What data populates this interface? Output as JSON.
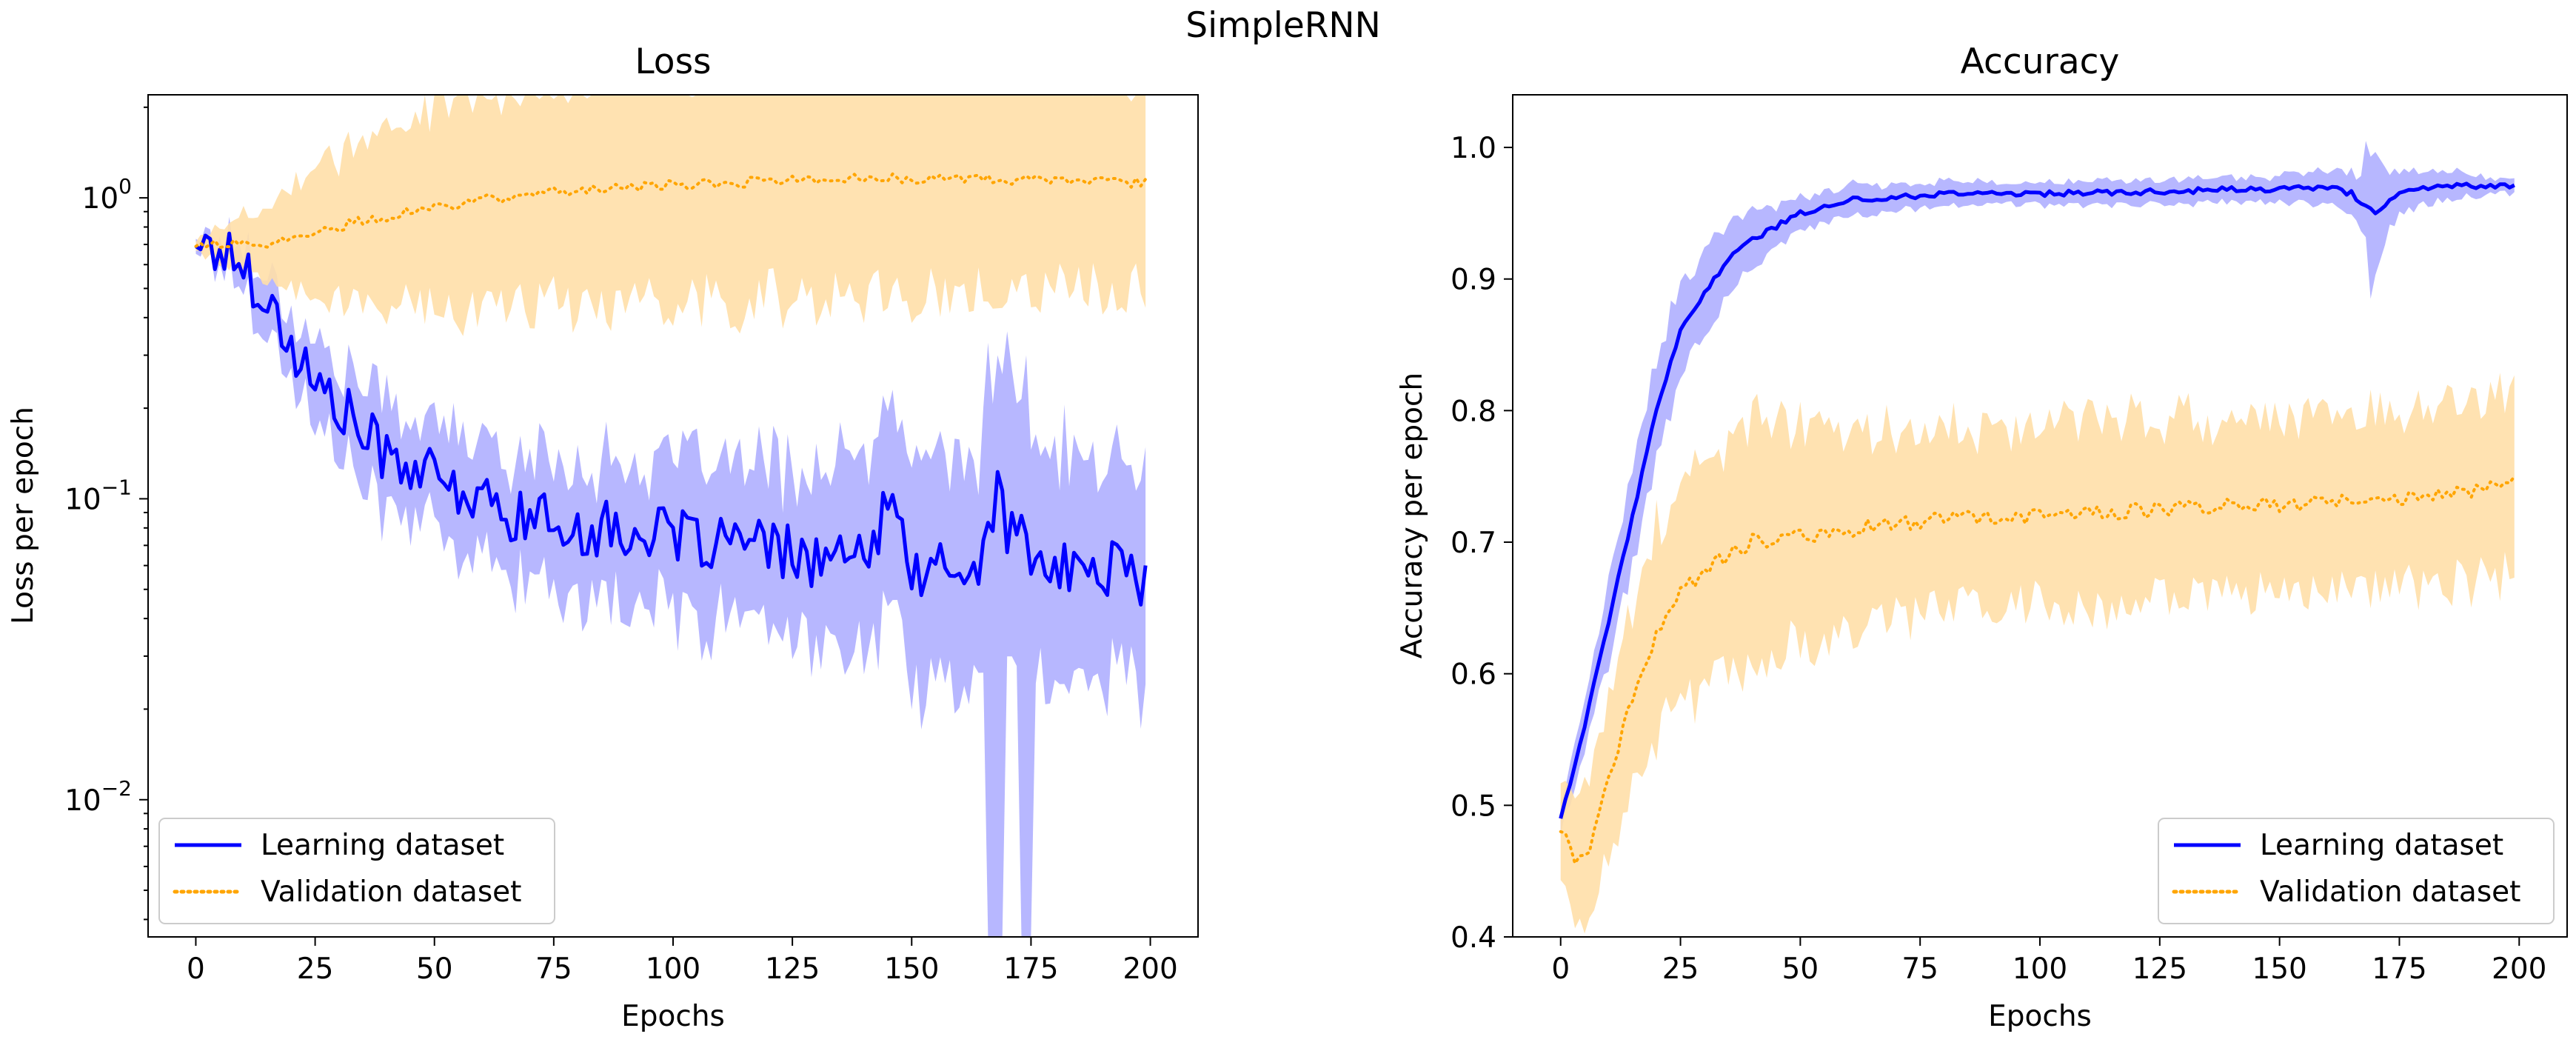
{
  "chart_data": {
    "suptitle": "SimpleRNN",
    "epochs": 200,
    "colors": {
      "learning": "#0000ff",
      "learning_band": "#aaaaff",
      "validation": "#ffa500",
      "validation_band": "#ffdfa8"
    },
    "charts": [
      {
        "id": "loss",
        "type": "line",
        "title": "Loss",
        "xlabel": "Epochs",
        "ylabel": "Loss per epoch",
        "yscale": "log",
        "xlim": [
          -10,
          210
        ],
        "ylim": [
          0.0035,
          2.2
        ],
        "xticks": [
          0,
          25,
          50,
          75,
          100,
          125,
          150,
          175,
          200
        ],
        "yticks": [
          {
            "value": 1,
            "base": "10",
            "exp": "0"
          },
          {
            "value": 0.1,
            "base": "10",
            "exp": "−1"
          },
          {
            "value": 0.01,
            "base": "10",
            "exp": "−2"
          }
        ],
        "legend": {
          "position": "lower-left",
          "entries": [
            {
              "label": "Learning dataset",
              "style": "solid",
              "series": "learning"
            },
            {
              "label": "Validation dataset",
              "style": "dotted",
              "series": "validation"
            }
          ]
        },
        "series": [
          {
            "name": "Learning dataset",
            "key": "learning",
            "style": "solid",
            "keypoints": [
              [
                0,
                0.69
              ],
              [
                5,
                0.67
              ],
              [
                10,
                0.6
              ],
              [
                15,
                0.45
              ],
              [
                20,
                0.32
              ],
              [
                25,
                0.24
              ],
              [
                30,
                0.2
              ],
              [
                35,
                0.165
              ],
              [
                40,
                0.14
              ],
              [
                45,
                0.13
              ],
              [
                50,
                0.115
              ],
              [
                55,
                0.105
              ],
              [
                60,
                0.097
              ],
              [
                65,
                0.09
              ],
              [
                70,
                0.087
              ],
              [
                75,
                0.082
              ],
              [
                80,
                0.08
              ],
              [
                90,
                0.078
              ],
              [
                100,
                0.074
              ],
              [
                110,
                0.072
              ],
              [
                120,
                0.068
              ],
              [
                130,
                0.063
              ],
              [
                140,
                0.062
              ],
              [
                145,
                0.09
              ],
              [
                150,
                0.06
              ],
              [
                155,
                0.058
              ],
              [
                160,
                0.057
              ],
              [
                165,
                0.06
              ],
              [
                168,
                0.115
              ],
              [
                170,
                0.08
              ],
              [
                175,
                0.066
              ],
              [
                180,
                0.057
              ],
              [
                190,
                0.058
              ],
              [
                195,
                0.062
              ],
              [
                199,
                0.049
              ]
            ],
            "noise": 0.22,
            "band_keypoints": [
              [
                0,
                0.025
              ],
              [
                20,
                0.14
              ],
              [
                40,
                0.2
              ],
              [
                80,
                0.25
              ],
              [
                100,
                0.28
              ],
              [
                130,
                0.34
              ],
              [
                150,
                0.42
              ],
              [
                180,
                0.45
              ],
              [
                199,
                0.4
              ]
            ]
          },
          {
            "name": "Validation dataset",
            "key": "validation",
            "style": "dotted",
            "keypoints": [
              [
                0,
                0.69
              ],
              [
                10,
                0.7
              ],
              [
                20,
                0.72
              ],
              [
                30,
                0.8
              ],
              [
                40,
                0.87
              ],
              [
                50,
                0.93
              ],
              [
                60,
                0.98
              ],
              [
                70,
                1.02
              ],
              [
                80,
                1.06
              ],
              [
                100,
                1.1
              ],
              [
                120,
                1.14
              ],
              [
                140,
                1.16
              ],
              [
                160,
                1.16
              ],
              [
                180,
                1.14
              ],
              [
                199,
                1.12
              ]
            ],
            "noise": 0.04,
            "band_keypoints": [
              [
                0,
                0.02
              ],
              [
                20,
                0.2
              ],
              [
                40,
                0.35
              ],
              [
                60,
                0.42
              ],
              [
                100,
                0.46
              ],
              [
                150,
                0.44
              ],
              [
                199,
                0.42
              ]
            ]
          }
        ]
      },
      {
        "id": "accuracy",
        "type": "line",
        "title": "Accuracy",
        "xlabel": "Epochs",
        "ylabel": "Accuracy per epoch",
        "yscale": "linear",
        "xlim": [
          -10,
          210
        ],
        "ylim": [
          0.4,
          1.04
        ],
        "xticks": [
          0,
          25,
          50,
          75,
          100,
          125,
          150,
          175,
          200
        ],
        "yticks": [
          {
            "value": 0.4,
            "label": "0.4"
          },
          {
            "value": 0.5,
            "label": "0.5"
          },
          {
            "value": 0.6,
            "label": "0.6"
          },
          {
            "value": 0.7,
            "label": "0.7"
          },
          {
            "value": 0.8,
            "label": "0.8"
          },
          {
            "value": 0.9,
            "label": "0.9"
          },
          {
            "value": 1.0,
            "label": "1.0"
          }
        ],
        "legend": {
          "position": "lower-right",
          "entries": [
            {
              "label": "Learning dataset",
              "style": "solid",
              "series": "learning"
            },
            {
              "label": "Validation dataset",
              "style": "dotted",
              "series": "validation"
            }
          ]
        },
        "series": [
          {
            "name": "Learning dataset",
            "key": "learning",
            "style": "solid",
            "keypoints": [
              [
                0,
                0.49
              ],
              [
                5,
                0.56
              ],
              [
                10,
                0.64
              ],
              [
                15,
                0.72
              ],
              [
                20,
                0.8
              ],
              [
                25,
                0.86
              ],
              [
                30,
                0.89
              ],
              [
                35,
                0.915
              ],
              [
                40,
                0.93
              ],
              [
                45,
                0.94
              ],
              [
                50,
                0.95
              ],
              [
                55,
                0.955
              ],
              [
                60,
                0.96
              ],
              [
                70,
                0.962
              ],
              [
                80,
                0.965
              ],
              [
                100,
                0.965
              ],
              [
                120,
                0.966
              ],
              [
                140,
                0.968
              ],
              [
                150,
                0.968
              ],
              [
                160,
                0.97
              ],
              [
                165,
                0.965
              ],
              [
                168,
                0.955
              ],
              [
                170,
                0.95
              ],
              [
                175,
                0.965
              ],
              [
                180,
                0.97
              ],
              [
                190,
                0.971
              ],
              [
                199,
                0.971
              ]
            ],
            "noise": 0.002,
            "band_keypoints": [
              [
                0,
                0.01
              ],
              [
                10,
                0.03
              ],
              [
                20,
                0.04
              ],
              [
                30,
                0.03
              ],
              [
                50,
                0.012
              ],
              [
                100,
                0.008
              ],
              [
                150,
                0.01
              ],
              [
                165,
                0.015
              ],
              [
                170,
                0.04
              ],
              [
                175,
                0.015
              ],
              [
                199,
                0.005
              ]
            ]
          },
          {
            "name": "Validation dataset",
            "key": "validation",
            "style": "dotted",
            "keypoints": [
              [
                0,
                0.48
              ],
              [
                3,
                0.46
              ],
              [
                6,
                0.47
              ],
              [
                10,
                0.52
              ],
              [
                15,
                0.58
              ],
              [
                20,
                0.63
              ],
              [
                25,
                0.66
              ],
              [
                30,
                0.68
              ],
              [
                35,
                0.69
              ],
              [
                40,
                0.7
              ],
              [
                50,
                0.705
              ],
              [
                60,
                0.71
              ],
              [
                70,
                0.714
              ],
              [
                80,
                0.718
              ],
              [
                100,
                0.72
              ],
              [
                120,
                0.724
              ],
              [
                140,
                0.728
              ],
              [
                160,
                0.73
              ],
              [
                180,
                0.735
              ],
              [
                190,
                0.74
              ],
              [
                199,
                0.75
              ]
            ],
            "noise": 0.006,
            "band_keypoints": [
              [
                0,
                0.04
              ],
              [
                10,
                0.06
              ],
              [
                20,
                0.08
              ],
              [
                40,
                0.09
              ],
              [
                60,
                0.07
              ],
              [
                100,
                0.07
              ],
              [
                150,
                0.065
              ],
              [
                199,
                0.07
              ]
            ]
          }
        ]
      }
    ]
  }
}
